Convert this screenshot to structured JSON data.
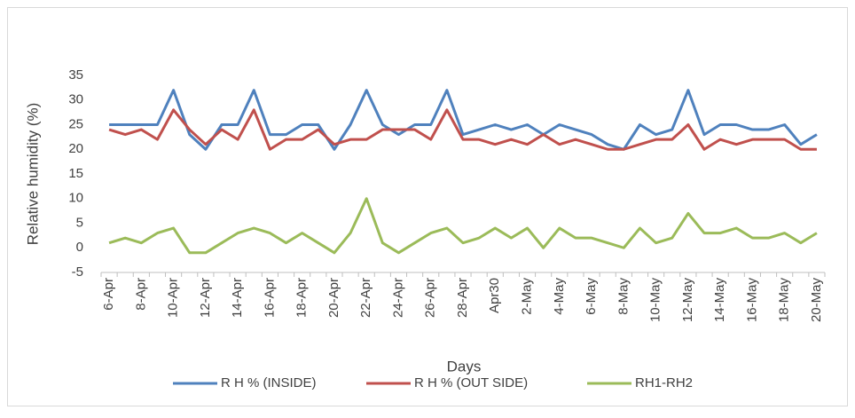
{
  "chart_data": {
    "type": "line",
    "y_label": "Relative humidity (%)",
    "x_label": "Days",
    "categories": [
      "6-Apr",
      null,
      "8-Apr",
      null,
      "10-Apr",
      null,
      "12-Apr",
      null,
      "14-Apr",
      null,
      "16-Apr",
      null,
      "18-Apr",
      null,
      "20-Apr",
      null,
      "22-Apr",
      null,
      "24-Apr",
      null,
      "26-Apr",
      null,
      "28-Apr",
      null,
      "Apr30",
      null,
      "2-May",
      null,
      "4-May",
      null,
      "6-May",
      null,
      "8-May",
      null,
      "10-May",
      null,
      "12-May",
      null,
      "14-May",
      null,
      "16-May",
      null,
      "18-May",
      null,
      "20-May"
    ],
    "series": [
      {
        "name": "R H % (INSIDE)",
        "color": "#4f81bd",
        "values": [
          25,
          25,
          25,
          25,
          32,
          23,
          20,
          25,
          25,
          32,
          23,
          23,
          25,
          25,
          20,
          25,
          32,
          25,
          23,
          25,
          25,
          32,
          23,
          24,
          25,
          24,
          25,
          23,
          25,
          24,
          23,
          21,
          20,
          25,
          23,
          24,
          32,
          23,
          25,
          25,
          24,
          24,
          25,
          21,
          23
        ]
      },
      {
        "name": "R H % (OUT SIDE)",
        "color": "#c0504d",
        "values": [
          24,
          23,
          24,
          22,
          28,
          24,
          21,
          24,
          22,
          28,
          20,
          22,
          22,
          24,
          21,
          22,
          22,
          24,
          24,
          24,
          22,
          28,
          22,
          22,
          21,
          22,
          21,
          23,
          21,
          22,
          21,
          20,
          20,
          21,
          22,
          22,
          25,
          20,
          22,
          21,
          22,
          22,
          22,
          20,
          20
        ]
      },
      {
        "name": "RH1-RH2",
        "color": "#9bbb59",
        "values": [
          1,
          2,
          1,
          3,
          4,
          -1,
          -1,
          1,
          3,
          4,
          3,
          1,
          3,
          1,
          -1,
          3,
          10,
          1,
          -1,
          1,
          3,
          4,
          1,
          2,
          4,
          2,
          4,
          0,
          4,
          2,
          2,
          1,
          0,
          4,
          1,
          2,
          7,
          3,
          3,
          4,
          2,
          2,
          3,
          1,
          3
        ]
      }
    ],
    "ylim": [
      -5,
      35
    ],
    "yticks": [
      -5,
      0,
      5,
      10,
      15,
      20,
      25,
      30,
      35
    ],
    "grid": false,
    "legend": "bottom"
  }
}
